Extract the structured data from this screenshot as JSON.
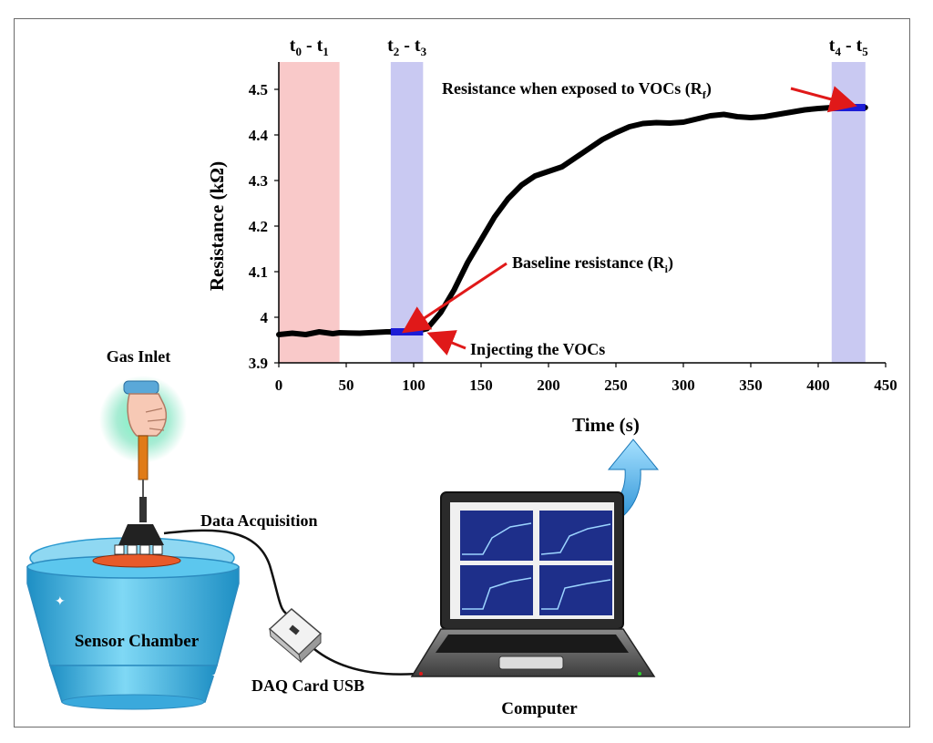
{
  "chart_data": {
    "type": "line",
    "xlabel": "Time (s)",
    "ylabel": "Resistance (kΩ)",
    "xlim": [
      0,
      450
    ],
    "ylim": [
      3.9,
      4.55
    ],
    "xticks": [
      0,
      50,
      100,
      150,
      200,
      250,
      300,
      350,
      400,
      450
    ],
    "yticks": [
      3.9,
      4,
      4.1,
      4.2,
      4.3,
      4.4,
      4.5
    ],
    "grid": false,
    "series": [
      {
        "x": [
          0,
          10,
          20,
          30,
          40,
          45,
          60,
          80,
          100,
          110,
          120,
          130,
          140,
          150,
          160,
          170,
          180,
          190,
          200,
          210,
          220,
          230,
          240,
          250,
          260,
          270,
          280,
          290,
          300,
          310,
          320,
          330,
          340,
          350,
          360,
          370,
          380,
          390,
          400,
          410,
          420,
          435
        ],
        "y": [
          3.962,
          3.965,
          3.962,
          3.968,
          3.964,
          3.966,
          3.965,
          3.968,
          3.968,
          3.975,
          4.01,
          4.06,
          4.12,
          4.17,
          4.22,
          4.26,
          4.29,
          4.31,
          4.32,
          4.33,
          4.35,
          4.37,
          4.39,
          4.405,
          4.418,
          4.425,
          4.427,
          4.426,
          4.428,
          4.435,
          4.442,
          4.445,
          4.44,
          4.438,
          4.44,
          4.445,
          4.45,
          4.455,
          4.458,
          4.46,
          4.46,
          4.46
        ]
      }
    ],
    "bands": [
      {
        "label_main": "t",
        "sub1": "0",
        "mid": " - t",
        "sub2": "1",
        "x0": 0,
        "x1": 45,
        "color": "#f9c9c9"
      },
      {
        "label_main": "t",
        "sub1": "2",
        "mid": " - t",
        "sub2": "3",
        "x0": 83,
        "x1": 107,
        "color": "#c9c9f2"
      },
      {
        "label_main": "t",
        "sub1": "4",
        "mid": " - t",
        "sub2": "5",
        "x0": 410,
        "x1": 435,
        "color": "#c9c9f2"
      }
    ],
    "highlights": [
      {
        "x0": 83,
        "x1": 107,
        "y": 3.968
      },
      {
        "x0": 410,
        "x1": 435,
        "y": 4.46
      }
    ],
    "annotations": {
      "rf_main": "Resistance when exposed to VOCs (R",
      "rf_sub": "f",
      "rf_close": ")",
      "ri_main": "Baseline resistance (R",
      "ri_sub": "i",
      "ri_close": ")",
      "inject": "Injecting the VOCs"
    }
  },
  "diagram": {
    "gas_inlet": "Gas Inlet",
    "data_acquisition": "Data Acquisition",
    "sensor_chamber": "Sensor Chamber",
    "daq_card": "DAQ Card USB",
    "computer": "Computer"
  },
  "colors": {
    "curve": "#000000",
    "highlight": "#1c1cd6",
    "arrow": "#e01919",
    "chamber": "#33b6e6",
    "laptop_body": "#6f6f6f",
    "screen_plot": "#1e2f8a",
    "syringe": "#e07b18",
    "computer_arrow": "#2a9ee0"
  }
}
